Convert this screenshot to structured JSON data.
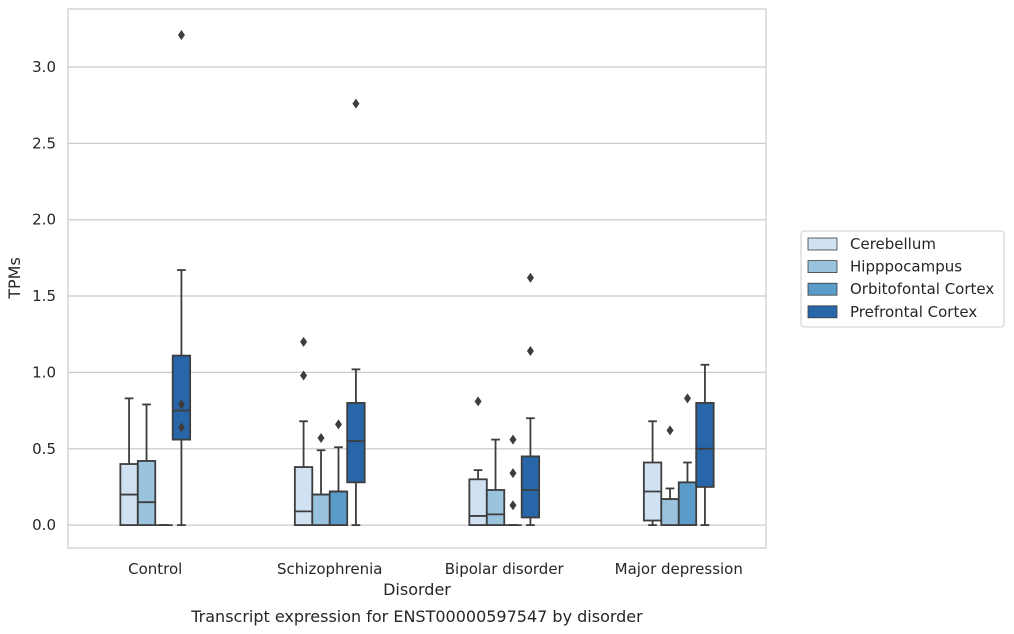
{
  "chart_data": {
    "type": "box",
    "caption": "Transcript expression for ENST00000597547 by disorder",
    "xlabel": "Disorder",
    "ylabel": "TPMs",
    "ylim": [
      -0.15,
      3.38
    ],
    "yticks": [
      "0.0",
      "0.5",
      "1.0",
      "1.5",
      "2.0",
      "2.5",
      "3.0"
    ],
    "grid": "horizontal",
    "legend_position": "right",
    "categories": [
      "Control",
      "Schizophrenia",
      "Bipolar disorder",
      "Major depression"
    ],
    "series": [
      {
        "name": "Cerebellum",
        "color": "#d0e1f2",
        "boxes": [
          {
            "whislo": 0.0,
            "q1": 0.0,
            "med": 0.2,
            "q3": 0.4,
            "whishi": 0.83,
            "fliers": []
          },
          {
            "whislo": 0.0,
            "q1": 0.0,
            "med": 0.09,
            "q3": 0.38,
            "whishi": 0.68,
            "fliers": [
              0.98,
              1.2
            ]
          },
          {
            "whislo": 0.0,
            "q1": 0.0,
            "med": 0.06,
            "q3": 0.3,
            "whishi": 0.36,
            "fliers": [
              0.81
            ]
          },
          {
            "whislo": 0.0,
            "q1": 0.03,
            "med": 0.22,
            "q3": 0.41,
            "whishi": 0.68,
            "fliers": []
          }
        ]
      },
      {
        "name": "Hipppocampus",
        "color": "#9ac3de",
        "boxes": [
          {
            "whislo": 0.0,
            "q1": 0.0,
            "med": 0.15,
            "q3": 0.42,
            "whishi": 0.79,
            "fliers": []
          },
          {
            "whislo": 0.0,
            "q1": 0.0,
            "med": 0.2,
            "q3": 0.2,
            "whishi": 0.49,
            "fliers": [
              0.57
            ]
          },
          {
            "whislo": 0.0,
            "q1": 0.0,
            "med": 0.07,
            "q3": 0.23,
            "whishi": 0.56,
            "fliers": []
          },
          {
            "whislo": 0.0,
            "q1": 0.0,
            "med": 0.17,
            "q3": 0.17,
            "whishi": 0.24,
            "fliers": [
              0.62
            ]
          }
        ]
      },
      {
        "name": "Orbitofontal Cortex",
        "color": "#5b9bc9",
        "boxes": [
          {
            "whislo": 0.0,
            "q1": 0.0,
            "med": 0.0,
            "q3": 0.0,
            "whishi": 0.0,
            "fliers": []
          },
          {
            "whislo": 0.0,
            "q1": 0.0,
            "med": 0.22,
            "q3": 0.22,
            "whishi": 0.51,
            "fliers": [
              0.66
            ]
          },
          {
            "whislo": 0.0,
            "q1": 0.0,
            "med": 0.0,
            "q3": 0.0,
            "whishi": 0.0,
            "fliers": [
              0.13,
              0.34,
              0.56
            ]
          },
          {
            "whislo": 0.0,
            "q1": 0.0,
            "med": 0.0,
            "q3": 0.28,
            "whishi": 0.41,
            "fliers": [
              0.83
            ]
          }
        ]
      },
      {
        "name": "Prefrontal Cortex",
        "color": "#2766a8",
        "boxes": [
          {
            "whislo": 0.0,
            "q1": 0.56,
            "med": 0.75,
            "q3": 1.11,
            "whishi": 1.67,
            "fliers": [
              0.64,
              0.79,
              3.21
            ]
          },
          {
            "whislo": 0.0,
            "q1": 0.28,
            "med": 0.55,
            "q3": 0.8,
            "whishi": 1.02,
            "fliers": [
              2.76
            ]
          },
          {
            "whislo": 0.0,
            "q1": 0.05,
            "med": 0.23,
            "q3": 0.45,
            "whishi": 0.7,
            "fliers": [
              1.14,
              1.62
            ]
          },
          {
            "whislo": 0.0,
            "q1": 0.25,
            "med": 0.5,
            "q3": 0.8,
            "whishi": 1.05,
            "fliers": []
          }
        ]
      }
    ]
  }
}
